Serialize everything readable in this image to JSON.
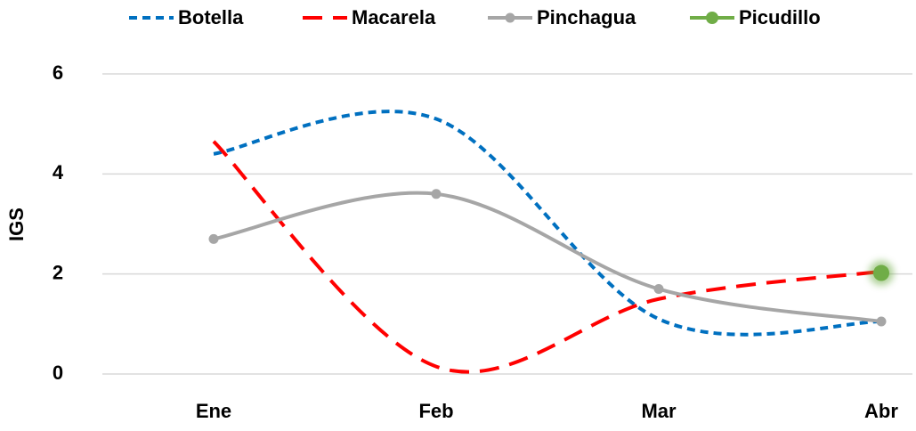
{
  "chart_data": {
    "type": "line",
    "y_label": "IGS",
    "categories": [
      "Ene",
      "Feb",
      "Mar",
      "Abr"
    ],
    "series": [
      {
        "name": "Botella",
        "color": "#0070c0",
        "values": [
          4.4,
          5.1,
          1.1,
          1.05
        ]
      },
      {
        "name": "Macarela",
        "color": "#ff0000",
        "values": [
          4.65,
          0.15,
          1.5,
          2.05
        ]
      },
      {
        "name": "Pinchagua",
        "color": "#a6a6a6",
        "values": [
          2.7,
          3.6,
          1.7,
          1.05
        ]
      },
      {
        "name": "Picudillo",
        "color": "#70ad47",
        "values": [
          null,
          null,
          null,
          2.02
        ]
      }
    ],
    "ylim": [
      0,
      6
    ],
    "yticks": [
      0,
      2,
      4,
      6
    ],
    "grid": true,
    "legend": "top"
  }
}
